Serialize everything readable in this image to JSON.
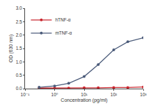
{
  "chart_data": {
    "type": "line",
    "x_label": "Concentration (pg/ml)",
    "y_label": "OD (630 nm)",
    "x": [
      0.3,
      1,
      3,
      10,
      30,
      100,
      300,
      1000
    ],
    "series": [
      {
        "name": "hTNF-α",
        "color": "#c8262e",
        "marker": "circle",
        "line_style": "solid",
        "values": [
          0.02,
          0.02,
          0.02,
          0.03,
          0.03,
          0.04,
          0.04,
          0.06
        ]
      },
      {
        "name": "mTNF-α",
        "color": "#4b5b7a",
        "marker": "circle",
        "line_style": "solid",
        "values": [
          0.05,
          0.1,
          0.2,
          0.45,
          0.9,
          1.45,
          1.75,
          1.9
        ]
      }
    ],
    "log": "x",
    "xlim": [
      0.1,
      1000
    ],
    "xticks": [
      {
        "value": 0.1,
        "label": "10⁻¹"
      },
      {
        "value": 1,
        "label": "10⁰"
      },
      {
        "value": 10,
        "label": "10¹"
      },
      {
        "value": 100,
        "label": "10²"
      },
      {
        "value": 1000,
        "label": "10³"
      }
    ],
    "ylim": [
      0,
      3
    ],
    "yticks": [
      {
        "value": 0,
        "label": "0.0"
      },
      0.5,
      {
        "value": 1,
        "label": "1.0"
      },
      1.5,
      {
        "value": 2,
        "label": "2.0"
      },
      2.5,
      {
        "value": 3,
        "label": "3.0"
      }
    ],
    "grid": false,
    "legend": "top-left"
  }
}
